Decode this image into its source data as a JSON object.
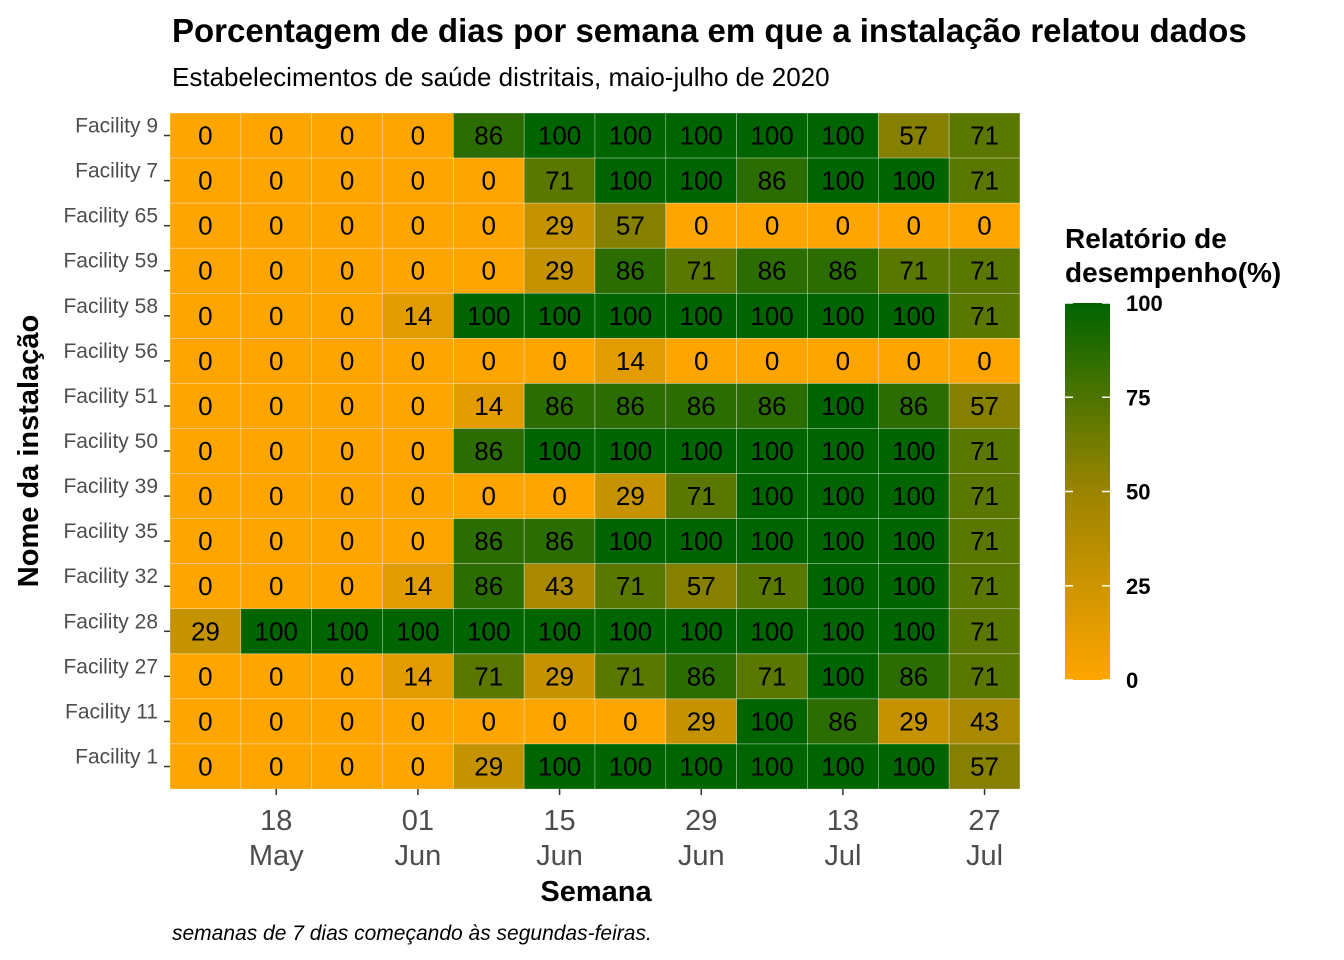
{
  "chart_data": {
    "type": "heatmap",
    "title": "Porcentagem de dias por semana em que a instalação relatou dados",
    "subtitle": "Estabelecimentos de saúde distritais, maio-julho de 2020",
    "xlabel": "Semana",
    "ylabel": "Nome da instalação",
    "caption": "semanas de 7 dias começando às segundas-feiras.",
    "x_tick_labels": [
      {
        "day": "18",
        "month": "May",
        "col": 1
      },
      {
        "day": "01",
        "month": "Jun",
        "col": 3
      },
      {
        "day": "15",
        "month": "Jun",
        "col": 5
      },
      {
        "day": "29",
        "month": "Jun",
        "col": 7
      },
      {
        "day": "13",
        "month": "Jul",
        "col": 9
      },
      {
        "day": "27",
        "month": "Jul",
        "col": 11
      }
    ],
    "weeks": [
      "2020-05-11",
      "2020-05-18",
      "2020-05-25",
      "2020-06-01",
      "2020-06-08",
      "2020-06-15",
      "2020-06-22",
      "2020-06-29",
      "2020-07-06",
      "2020-07-13",
      "2020-07-20",
      "2020-07-27"
    ],
    "facilities": [
      "Facility 9",
      "Facility 7",
      "Facility 65",
      "Facility 59",
      "Facility 58",
      "Facility 56",
      "Facility 51",
      "Facility 50",
      "Facility 39",
      "Facility 35",
      "Facility 32",
      "Facility 28",
      "Facility 27",
      "Facility 11",
      "Facility 1"
    ],
    "values": [
      [
        0,
        0,
        0,
        0,
        86,
        100,
        100,
        100,
        100,
        100,
        57,
        71
      ],
      [
        0,
        0,
        0,
        0,
        0,
        71,
        100,
        100,
        86,
        100,
        100,
        71
      ],
      [
        0,
        0,
        0,
        0,
        0,
        29,
        57,
        0,
        0,
        0,
        0,
        0
      ],
      [
        0,
        0,
        0,
        0,
        0,
        29,
        86,
        71,
        86,
        86,
        71,
        71
      ],
      [
        0,
        0,
        0,
        14,
        100,
        100,
        100,
        100,
        100,
        100,
        100,
        71
      ],
      [
        0,
        0,
        0,
        0,
        0,
        0,
        14,
        0,
        0,
        0,
        0,
        0
      ],
      [
        0,
        0,
        0,
        0,
        14,
        86,
        86,
        86,
        86,
        100,
        86,
        57
      ],
      [
        0,
        0,
        0,
        0,
        86,
        100,
        100,
        100,
        100,
        100,
        100,
        71
      ],
      [
        0,
        0,
        0,
        0,
        0,
        0,
        29,
        71,
        100,
        100,
        100,
        71
      ],
      [
        0,
        0,
        0,
        0,
        86,
        86,
        100,
        100,
        100,
        100,
        100,
        71
      ],
      [
        0,
        0,
        0,
        14,
        86,
        43,
        71,
        57,
        71,
        100,
        100,
        71
      ],
      [
        29,
        100,
        100,
        100,
        100,
        100,
        100,
        100,
        100,
        100,
        100,
        71
      ],
      [
        0,
        0,
        0,
        14,
        71,
        29,
        71,
        86,
        71,
        100,
        86,
        71
      ],
      [
        0,
        0,
        0,
        0,
        0,
        0,
        0,
        29,
        100,
        86,
        29,
        43
      ],
      [
        0,
        0,
        0,
        0,
        29,
        100,
        100,
        100,
        100,
        100,
        100,
        57
      ]
    ],
    "legend": {
      "title_line1": "Relatório de",
      "title_line2": "desempenho(%)",
      "ticks": [
        100,
        75,
        50,
        25,
        0
      ],
      "range": [
        0,
        100
      ]
    },
    "colors": {
      "low": "#FFA500",
      "mid": "#9B8400",
      "high": "#006400"
    },
    "grid": false
  }
}
